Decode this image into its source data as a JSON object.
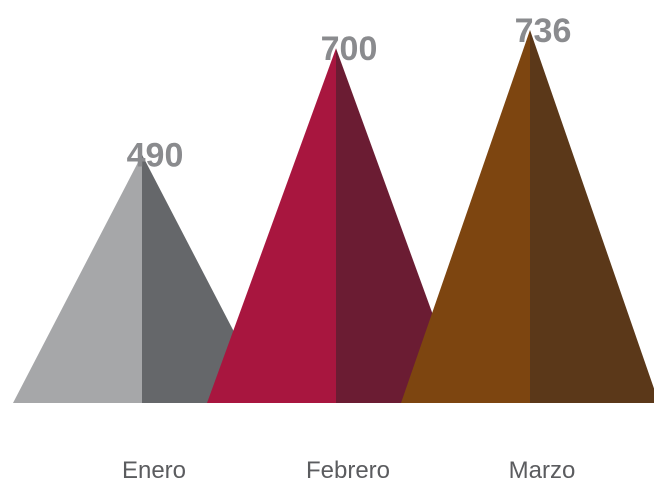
{
  "chart_data": {
    "type": "bar",
    "shape": "pyramid",
    "categories": [
      "Enero",
      "Febrero",
      "Marzo"
    ],
    "values": [
      490,
      700,
      736
    ],
    "data_labels": [
      "490",
      "700",
      "736"
    ],
    "ylim": [
      0,
      736
    ],
    "grid": false,
    "legend": "none",
    "colors": [
      {
        "light": "#a6a7a9",
        "dark": "#65676a"
      },
      {
        "light": "#a8163f",
        "dark": "#6b1c33"
      },
      {
        "light": "#7d4510",
        "dark": "#5b3819"
      }
    ]
  }
}
